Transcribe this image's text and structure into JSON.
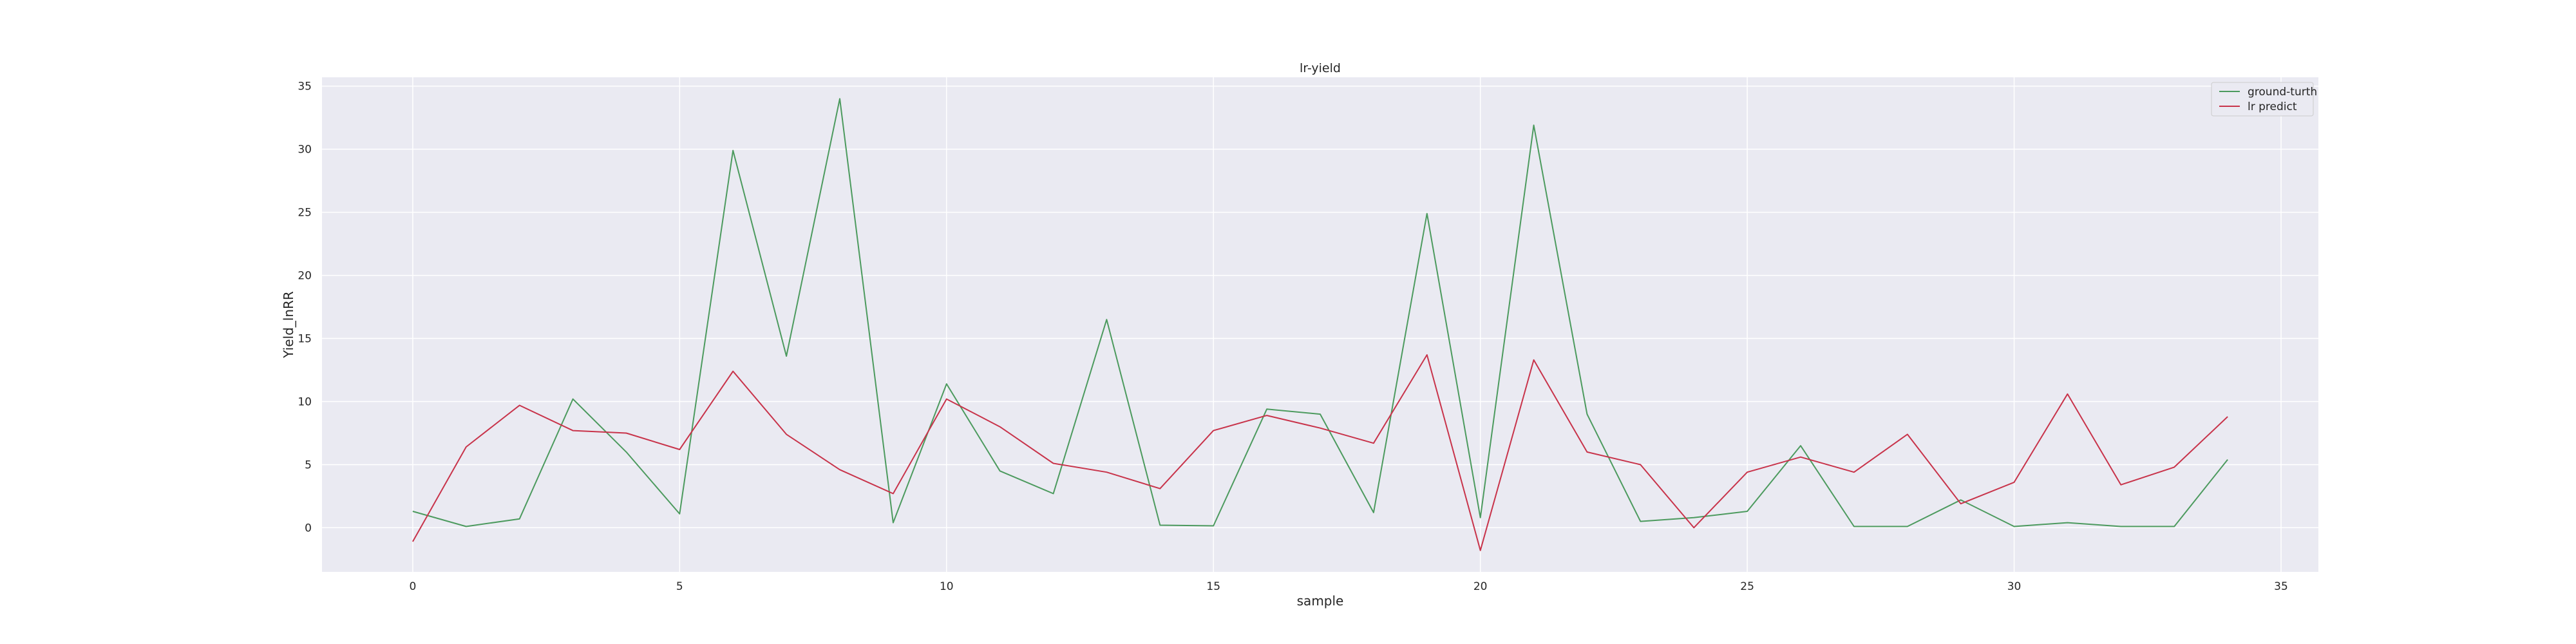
{
  "chart_data": {
    "type": "line",
    "title": "lr-yield",
    "xlabel": "sample",
    "ylabel": "Yield_lnRR",
    "xlim": [
      -1.7,
      35.7
    ],
    "ylim": [
      -3.5,
      35.7
    ],
    "x_ticks": [
      0,
      5,
      10,
      15,
      20,
      25,
      30,
      35
    ],
    "y_ticks": [
      0,
      5,
      10,
      15,
      20,
      25,
      30,
      35
    ],
    "grid": true,
    "legend_position": "top-right",
    "x": [
      0,
      1,
      2,
      3,
      4,
      5,
      6,
      7,
      8,
      9,
      10,
      11,
      12,
      13,
      14,
      15,
      16,
      17,
      18,
      19,
      20,
      21,
      22,
      23,
      24,
      25,
      26,
      27,
      28,
      29,
      30,
      31,
      32,
      33,
      34
    ],
    "series": [
      {
        "name": "ground-turth",
        "color": "#4c9a5e",
        "values": [
          1.3,
          0.1,
          0.7,
          10.2,
          6.0,
          1.1,
          29.9,
          13.6,
          34.0,
          0.4,
          11.4,
          4.5,
          2.7,
          16.5,
          0.2,
          0.15,
          9.4,
          9.0,
          1.2,
          24.9,
          0.8,
          31.9,
          9.0,
          0.5,
          0.8,
          1.3,
          6.5,
          0.1,
          0.1,
          2.2,
          0.1,
          0.4,
          0.1,
          0.1,
          5.4
        ]
      },
      {
        "name": "lr predict",
        "color": "#c8334a",
        "values": [
          -1.1,
          6.4,
          9.7,
          7.7,
          7.5,
          6.2,
          12.4,
          7.4,
          4.6,
          2.7,
          10.2,
          8.0,
          5.1,
          4.4,
          3.1,
          7.7,
          8.9,
          7.9,
          6.7,
          13.7,
          -1.8,
          13.3,
          6.0,
          5.0,
          0.0,
          4.4,
          5.6,
          4.4,
          7.4,
          1.9,
          3.6,
          10.6,
          3.4,
          4.8,
          8.8
        ]
      }
    ]
  }
}
